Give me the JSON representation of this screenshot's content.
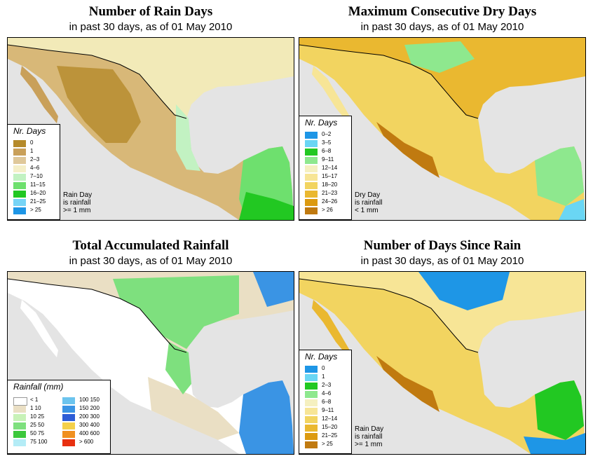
{
  "panels": [
    {
      "title": "Number of Rain Days",
      "subtitle": "in past 30 days, as of  01 May 2010",
      "legend": {
        "title": "Nr. Days",
        "items": [
          {
            "label": "0",
            "color": "#b58a2a"
          },
          {
            "label": "1",
            "color": "#c9a05a"
          },
          {
            "label": "2–3",
            "color": "#dfc89a"
          },
          {
            "label": "4–6",
            "color": "#f5efc8"
          },
          {
            "label": "7–10",
            "color": "#c2f2c2"
          },
          {
            "label": "11–15",
            "color": "#6ee06e"
          },
          {
            "label": "16–20",
            "color": "#22c822"
          },
          {
            "label": "21–25",
            "color": "#76d4f6"
          },
          {
            "label": "> 25",
            "color": "#1e96e6"
          }
        ]
      },
      "note": [
        "Rain Day",
        "is rainfall",
        ">= 1 mm"
      ]
    },
    {
      "title": "Maximum Consecutive Dry Days",
      "subtitle": "in past 30 days, as of  01 May 2010",
      "legend": {
        "title": "Nr. Days",
        "items": [
          {
            "label": "0–2",
            "color": "#1e96e6"
          },
          {
            "label": "3–5",
            "color": "#6ad6f4"
          },
          {
            "label": "6–8",
            "color": "#22c822"
          },
          {
            "label": "9–11",
            "color": "#8ee88e"
          },
          {
            "label": "12–14",
            "color": "#f5f0c0"
          },
          {
            "label": "15–17",
            "color": "#f7e596"
          },
          {
            "label": "18–20",
            "color": "#f2d460"
          },
          {
            "label": "21–23",
            "color": "#eab830"
          },
          {
            "label": "24–26",
            "color": "#dc9a10"
          },
          {
            "label": "> 26",
            "color": "#c07a10"
          }
        ]
      },
      "note": [
        "Dry Day",
        "is rainfall",
        "< 1 mm"
      ]
    },
    {
      "title": "Total Accumulated Rainfall",
      "subtitle": "in past 30 days, as of  01 May 2010",
      "legend": {
        "title": "Rainfall (mm)",
        "left_items": [
          {
            "label": "< 1",
            "color": "#ffffff"
          },
          {
            "label": "1   10",
            "color": "#eadfc4"
          },
          {
            "label": "10   25",
            "color": "#c8f2b8"
          },
          {
            "label": "25   50",
            "color": "#7ee07e"
          },
          {
            "label": "50   75",
            "color": "#3cc83c"
          },
          {
            "label": "75   100",
            "color": "#b4ecf6"
          }
        ],
        "right_items": [
          {
            "label": "100  150",
            "color": "#6cc4ee"
          },
          {
            "label": "150  200",
            "color": "#3a94e4"
          },
          {
            "label": "200  300",
            "color": "#2c5cd6"
          },
          {
            "label": "300  400",
            "color": "#f4d04a"
          },
          {
            "label": "400  600",
            "color": "#f09020"
          },
          {
            "label": "> 600",
            "color": "#e83010"
          }
        ]
      }
    },
    {
      "title": "Number of Days Since Rain",
      "subtitle": "in past 30 days, as of  01 May 2010",
      "legend": {
        "title": "Nr. Days",
        "items": [
          {
            "label": "0",
            "color": "#1e96e6"
          },
          {
            "label": "1",
            "color": "#6ad6f4"
          },
          {
            "label": "2–3",
            "color": "#22c822"
          },
          {
            "label": "4–6",
            "color": "#8ee88e"
          },
          {
            "label": "6–8",
            "color": "#f5f0c0"
          },
          {
            "label": "9–11",
            "color": "#f7e596"
          },
          {
            "label": "12–14",
            "color": "#f2d460"
          },
          {
            "label": "15–20",
            "color": "#eab830"
          },
          {
            "label": "21–25",
            "color": "#dc9a10"
          },
          {
            "label": "> 25",
            "color": "#c07a10"
          }
        ]
      },
      "note": [
        "Rain Day",
        "is rainfall",
        ">= 1 mm"
      ]
    }
  ]
}
